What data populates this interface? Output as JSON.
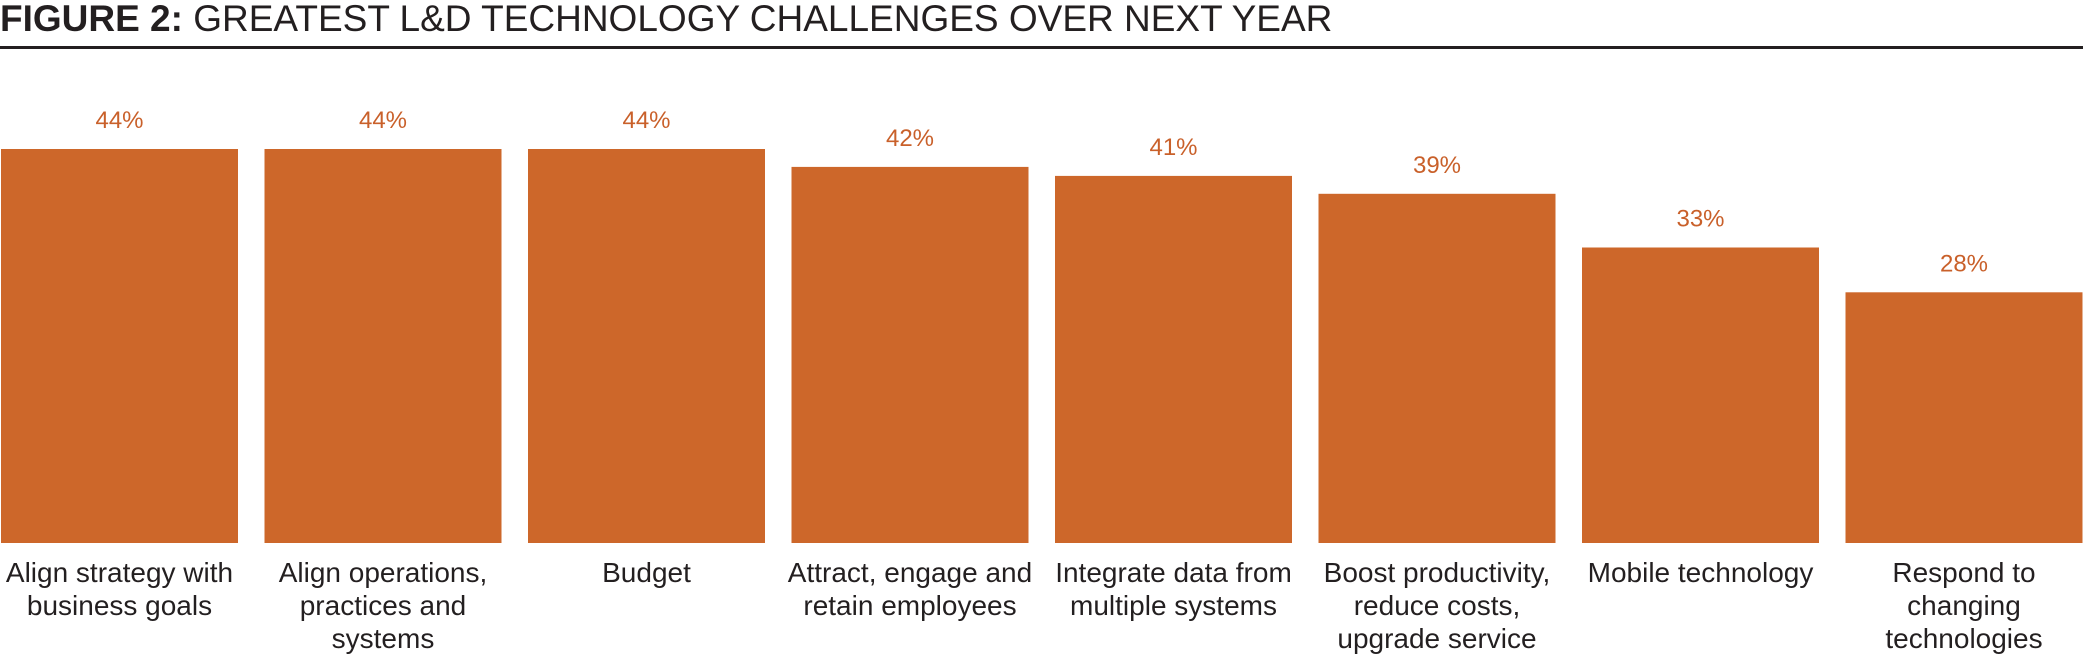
{
  "figure": {
    "label": "FIGURE 2:",
    "title": "GREATEST L&D TECHNOLOGY CHALLENGES OVER NEXT YEAR"
  },
  "colors": {
    "bar": "#cd672a",
    "value_label": "#c9602a",
    "text": "#231f20"
  },
  "chart_data": {
    "type": "bar",
    "title": "GREATEST L&D TECHNOLOGY CHALLENGES OVER NEXT YEAR",
    "categories": [
      [
        "Align strategy with",
        "business goals"
      ],
      [
        "Align operations,",
        "practices and",
        "systems"
      ],
      [
        "Budget"
      ],
      [
        "Attract, engage and",
        "retain employees"
      ],
      [
        "Integrate data from",
        "multiple systems"
      ],
      [
        "Boost productivity,",
        "reduce costs,",
        "upgrade service"
      ],
      [
        "Mobile technology"
      ],
      [
        "Respond to",
        "changing",
        "technologies"
      ]
    ],
    "values": [
      44,
      44,
      44,
      42,
      41,
      39,
      33,
      28
    ],
    "value_labels": [
      "44%",
      "44%",
      "44%",
      "42%",
      "41%",
      "39%",
      "33%",
      "28%"
    ],
    "unit": "%",
    "xlabel": "",
    "ylabel": "",
    "ylim": [
      0,
      44
    ],
    "grid": false,
    "legend": "none"
  }
}
